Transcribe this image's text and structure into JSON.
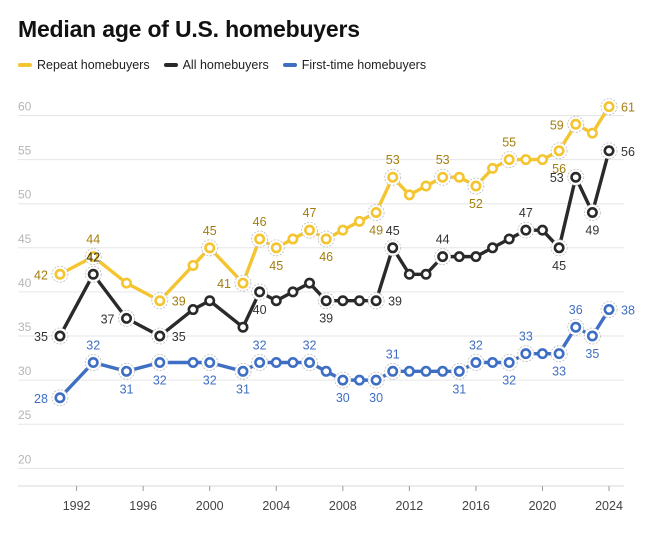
{
  "chart_data": {
    "type": "line",
    "title": "Median age of U.S. homebuyers",
    "xlabel": "",
    "ylabel": "",
    "ylim": [
      18,
      63
    ],
    "yticks": [
      20,
      25,
      30,
      35,
      40,
      45,
      50,
      55,
      60
    ],
    "xticks": [
      1992,
      1996,
      2000,
      2004,
      2008,
      2012,
      2016,
      2020,
      2024
    ],
    "grid": true,
    "legend_position": "top-left",
    "x": [
      1991,
      1993,
      1995,
      1997,
      1999,
      2000,
      2002,
      2003,
      2004,
      2005,
      2006,
      2007,
      2008,
      2009,
      2010,
      2011,
      2012,
      2013,
      2014,
      2015,
      2016,
      2017,
      2018,
      2019,
      2020,
      2021,
      2022,
      2023,
      2024
    ],
    "series": [
      {
        "name": "Repeat homebuyers",
        "color": "#f4c531",
        "label_color": "#a37e0e",
        "values": [
          42,
          44,
          41,
          39,
          43,
          45,
          41,
          46,
          45,
          46,
          47,
          46,
          47,
          48,
          49,
          53,
          51,
          52,
          53,
          53,
          52,
          54,
          55,
          55,
          55,
          56,
          59,
          58,
          61
        ],
        "labeled": [
          [
            1991,
            "left"
          ],
          [
            1993,
            "above"
          ],
          [
            1997,
            "right"
          ],
          [
            2000,
            "above"
          ],
          [
            2002,
            "left"
          ],
          [
            2003,
            "above"
          ],
          [
            2004,
            "below"
          ],
          [
            2006,
            "above"
          ],
          [
            2007,
            "below"
          ],
          [
            2010,
            "below"
          ],
          [
            2011,
            "above"
          ],
          [
            2014,
            "above"
          ],
          [
            2016,
            "below"
          ],
          [
            2018,
            "above"
          ],
          [
            2021,
            "below"
          ],
          [
            2022,
            "left"
          ],
          [
            2024,
            "right"
          ]
        ]
      },
      {
        "name": "All homebuyers",
        "color": "#2a2a2a",
        "label_color": "#333333",
        "values": [
          35,
          42,
          37,
          35,
          38,
          39,
          36,
          40,
          39,
          40,
          41,
          39,
          39,
          39,
          39,
          45,
          42,
          42,
          44,
          44,
          44,
          45,
          46,
          47,
          47,
          45,
          53,
          49,
          56
        ],
        "labeled": [
          [
            1991,
            "left"
          ],
          [
            1993,
            "above"
          ],
          [
            1995,
            "left"
          ],
          [
            1997,
            "right"
          ],
          [
            2003,
            "below"
          ],
          [
            2007,
            "below"
          ],
          [
            2010,
            "right"
          ],
          [
            2011,
            "above"
          ],
          [
            2014,
            "above"
          ],
          [
            2019,
            "above"
          ],
          [
            2021,
            "below"
          ],
          [
            2022,
            "left"
          ],
          [
            2023,
            "below"
          ],
          [
            2024,
            "right"
          ]
        ]
      },
      {
        "name": "First-time homebuyers",
        "color": "#3f6fc4",
        "label_color": "#3f6fc4",
        "values": [
          28,
          32,
          31,
          32,
          32,
          32,
          31,
          32,
          32,
          32,
          32,
          31,
          30,
          30,
          30,
          31,
          31,
          31,
          31,
          31,
          32,
          32,
          32,
          33,
          33,
          33,
          36,
          35,
          38
        ],
        "labeled": [
          [
            1991,
            "left"
          ],
          [
            1993,
            "above"
          ],
          [
            1995,
            "below"
          ],
          [
            1997,
            "below"
          ],
          [
            2000,
            "below"
          ],
          [
            2002,
            "below"
          ],
          [
            2003,
            "above"
          ],
          [
            2006,
            "above"
          ],
          [
            2008,
            "below"
          ],
          [
            2010,
            "below"
          ],
          [
            2011,
            "above"
          ],
          [
            2015,
            "below"
          ],
          [
            2016,
            "above"
          ],
          [
            2018,
            "below"
          ],
          [
            2019,
            "above"
          ],
          [
            2021,
            "below"
          ],
          [
            2022,
            "above"
          ],
          [
            2023,
            "below"
          ],
          [
            2024,
            "right"
          ]
        ]
      }
    ]
  }
}
